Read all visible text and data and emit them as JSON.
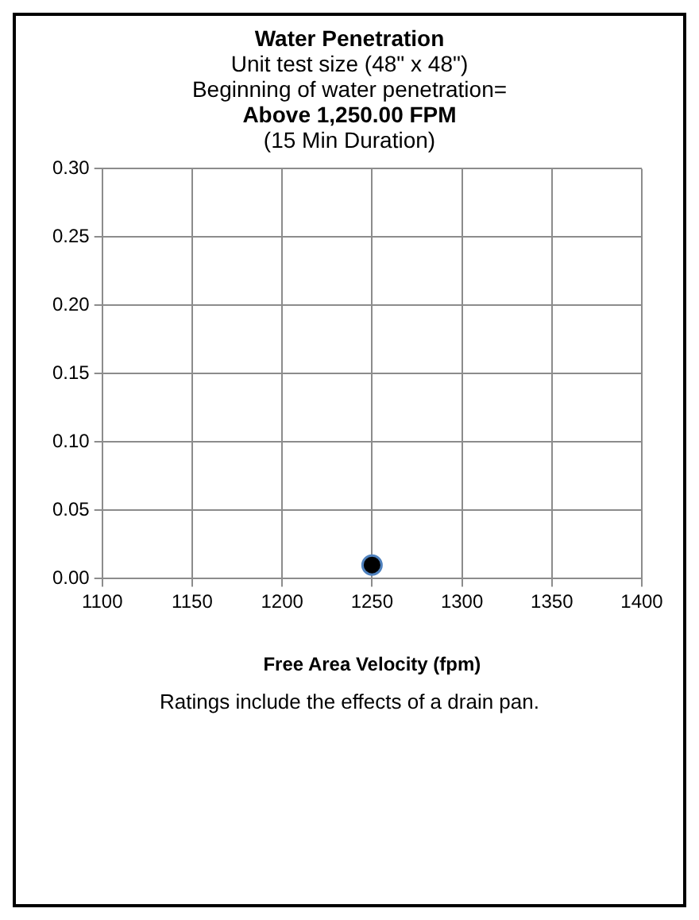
{
  "chart_data": {
    "type": "scatter",
    "title": "Water Penetration",
    "subtitle": "Unit test size (48\" x 48\")",
    "annotations": [
      "Beginning of water penetration=",
      "Above 1,250.00 FPM",
      "(15 Min Duration)",
      "Ratings include the effects of a drain pan."
    ],
    "xlabel": "Free Area Velocity (fpm)",
    "series": [
      {
        "color": "#000000",
        "x": [
          1250
        ],
        "values": [
          0.01
        ]
      }
    ],
    "xlim": [
      1100,
      1400
    ],
    "xticks": [
      1100,
      1150,
      1200,
      1250,
      1300,
      1350,
      1400
    ],
    "ylim": [
      0,
      0.3
    ],
    "yticks": [
      {
        "value": 0,
        "label": "0.00"
      },
      {
        "value": 0.05,
        "label": "0.05"
      },
      {
        "value": 0.1,
        "label": "0.10"
      },
      {
        "value": 0.15,
        "label": "0.15"
      },
      {
        "value": 0.2,
        "label": "0.20"
      },
      {
        "value": 0.25,
        "label": "0.25"
      },
      {
        "value": 0.3,
        "label": "0.30"
      }
    ],
    "grid": true,
    "marker": "circle",
    "legend": false
  }
}
